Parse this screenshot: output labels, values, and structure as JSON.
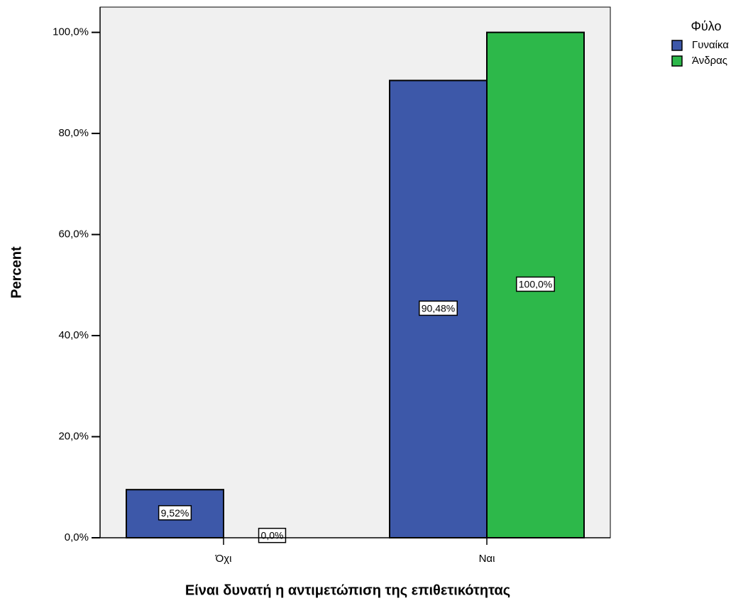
{
  "chart_data": {
    "type": "bar",
    "x_label": "Είναι δυνατή η αντιμετώπιση της επιθετικότητας",
    "y_label": "Percent",
    "categories": [
      "Όχι",
      "Ναι"
    ],
    "legend_title": "Φύλο",
    "legend_position": "right",
    "series": [
      {
        "name": "Γυναίκα",
        "color": "#3d58a9",
        "values": [
          9.52,
          90.48
        ],
        "value_labels": [
          "9,52%",
          "90,48%"
        ]
      },
      {
        "name": "Άνδρας",
        "color": "#2db84a",
        "values": [
          0,
          100
        ],
        "value_labels": [
          "0,0%",
          "100,0%"
        ]
      }
    ],
    "ylim": [
      0,
      105
    ],
    "yticks": [
      {
        "value": 0,
        "label": "0,0%"
      },
      {
        "value": 20,
        "label": "20,0%"
      },
      {
        "value": 40,
        "label": "40,0%"
      },
      {
        "value": 60,
        "label": "60,0%"
      },
      {
        "value": 80,
        "label": "80,0%"
      },
      {
        "value": 100,
        "label": "100,0%"
      }
    ]
  }
}
